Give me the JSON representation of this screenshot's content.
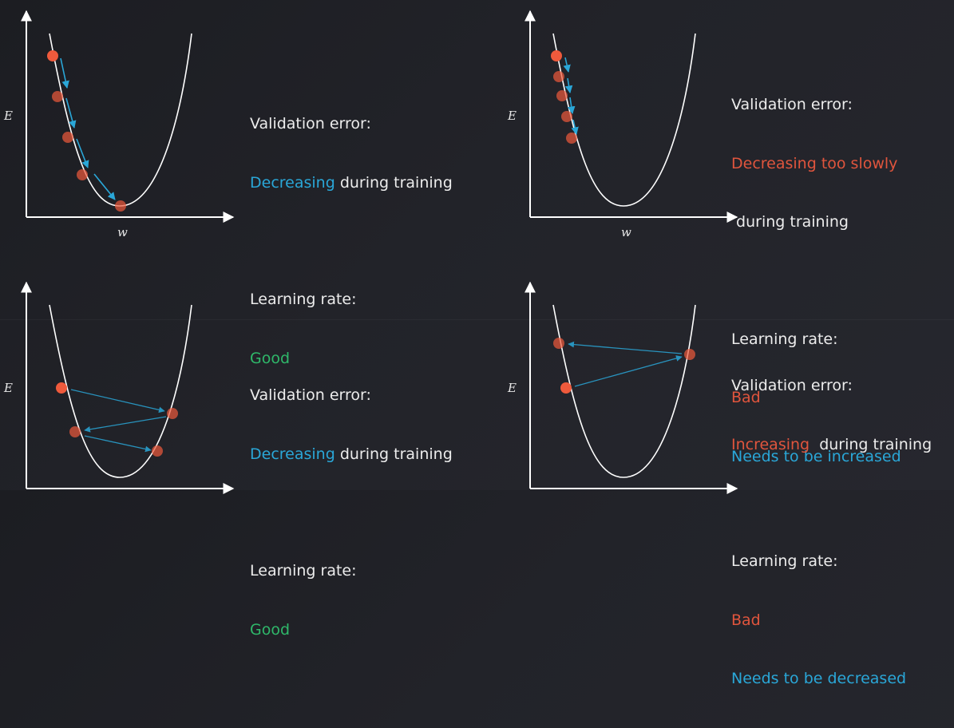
{
  "axes": {
    "x_label": "w",
    "y_label": "E"
  },
  "colors": {
    "background": "#202127",
    "curve": "#ffffff",
    "step_arrow": "#2aa7d8",
    "point": "#ef5a3c",
    "text_blue": "#2aa7d8",
    "text_red": "#e0553d",
    "text_green": "#2fb86a"
  },
  "panels": [
    {
      "id": "top-left",
      "validation_heading": "Validation error:",
      "validation_status": "Decreasing",
      "validation_suffix": " during training",
      "learning_heading": "Learning rate:",
      "learning_rate_verdict": "Good",
      "learning_rate_advice": ""
    },
    {
      "id": "top-right",
      "validation_heading": "Validation error:",
      "validation_status": "Decreasing too slowly",
      "validation_suffix": " during training",
      "learning_heading": "Learning rate:",
      "learning_rate_verdict": "Bad",
      "learning_rate_advice": "Needs to be increased"
    },
    {
      "id": "bottom-left",
      "validation_heading": "Validation error:",
      "validation_status": "Decreasing",
      "validation_suffix": " during training",
      "learning_heading": "Learning rate:",
      "learning_rate_verdict": "Good",
      "learning_rate_advice": ""
    },
    {
      "id": "bottom-right",
      "validation_heading": "Validation error:",
      "validation_status": "Increasing",
      "validation_suffix": "  during training",
      "learning_heading": "Learning rate:",
      "learning_rate_verdict": "Bad",
      "learning_rate_advice": "Needs to be decreased"
    }
  ]
}
